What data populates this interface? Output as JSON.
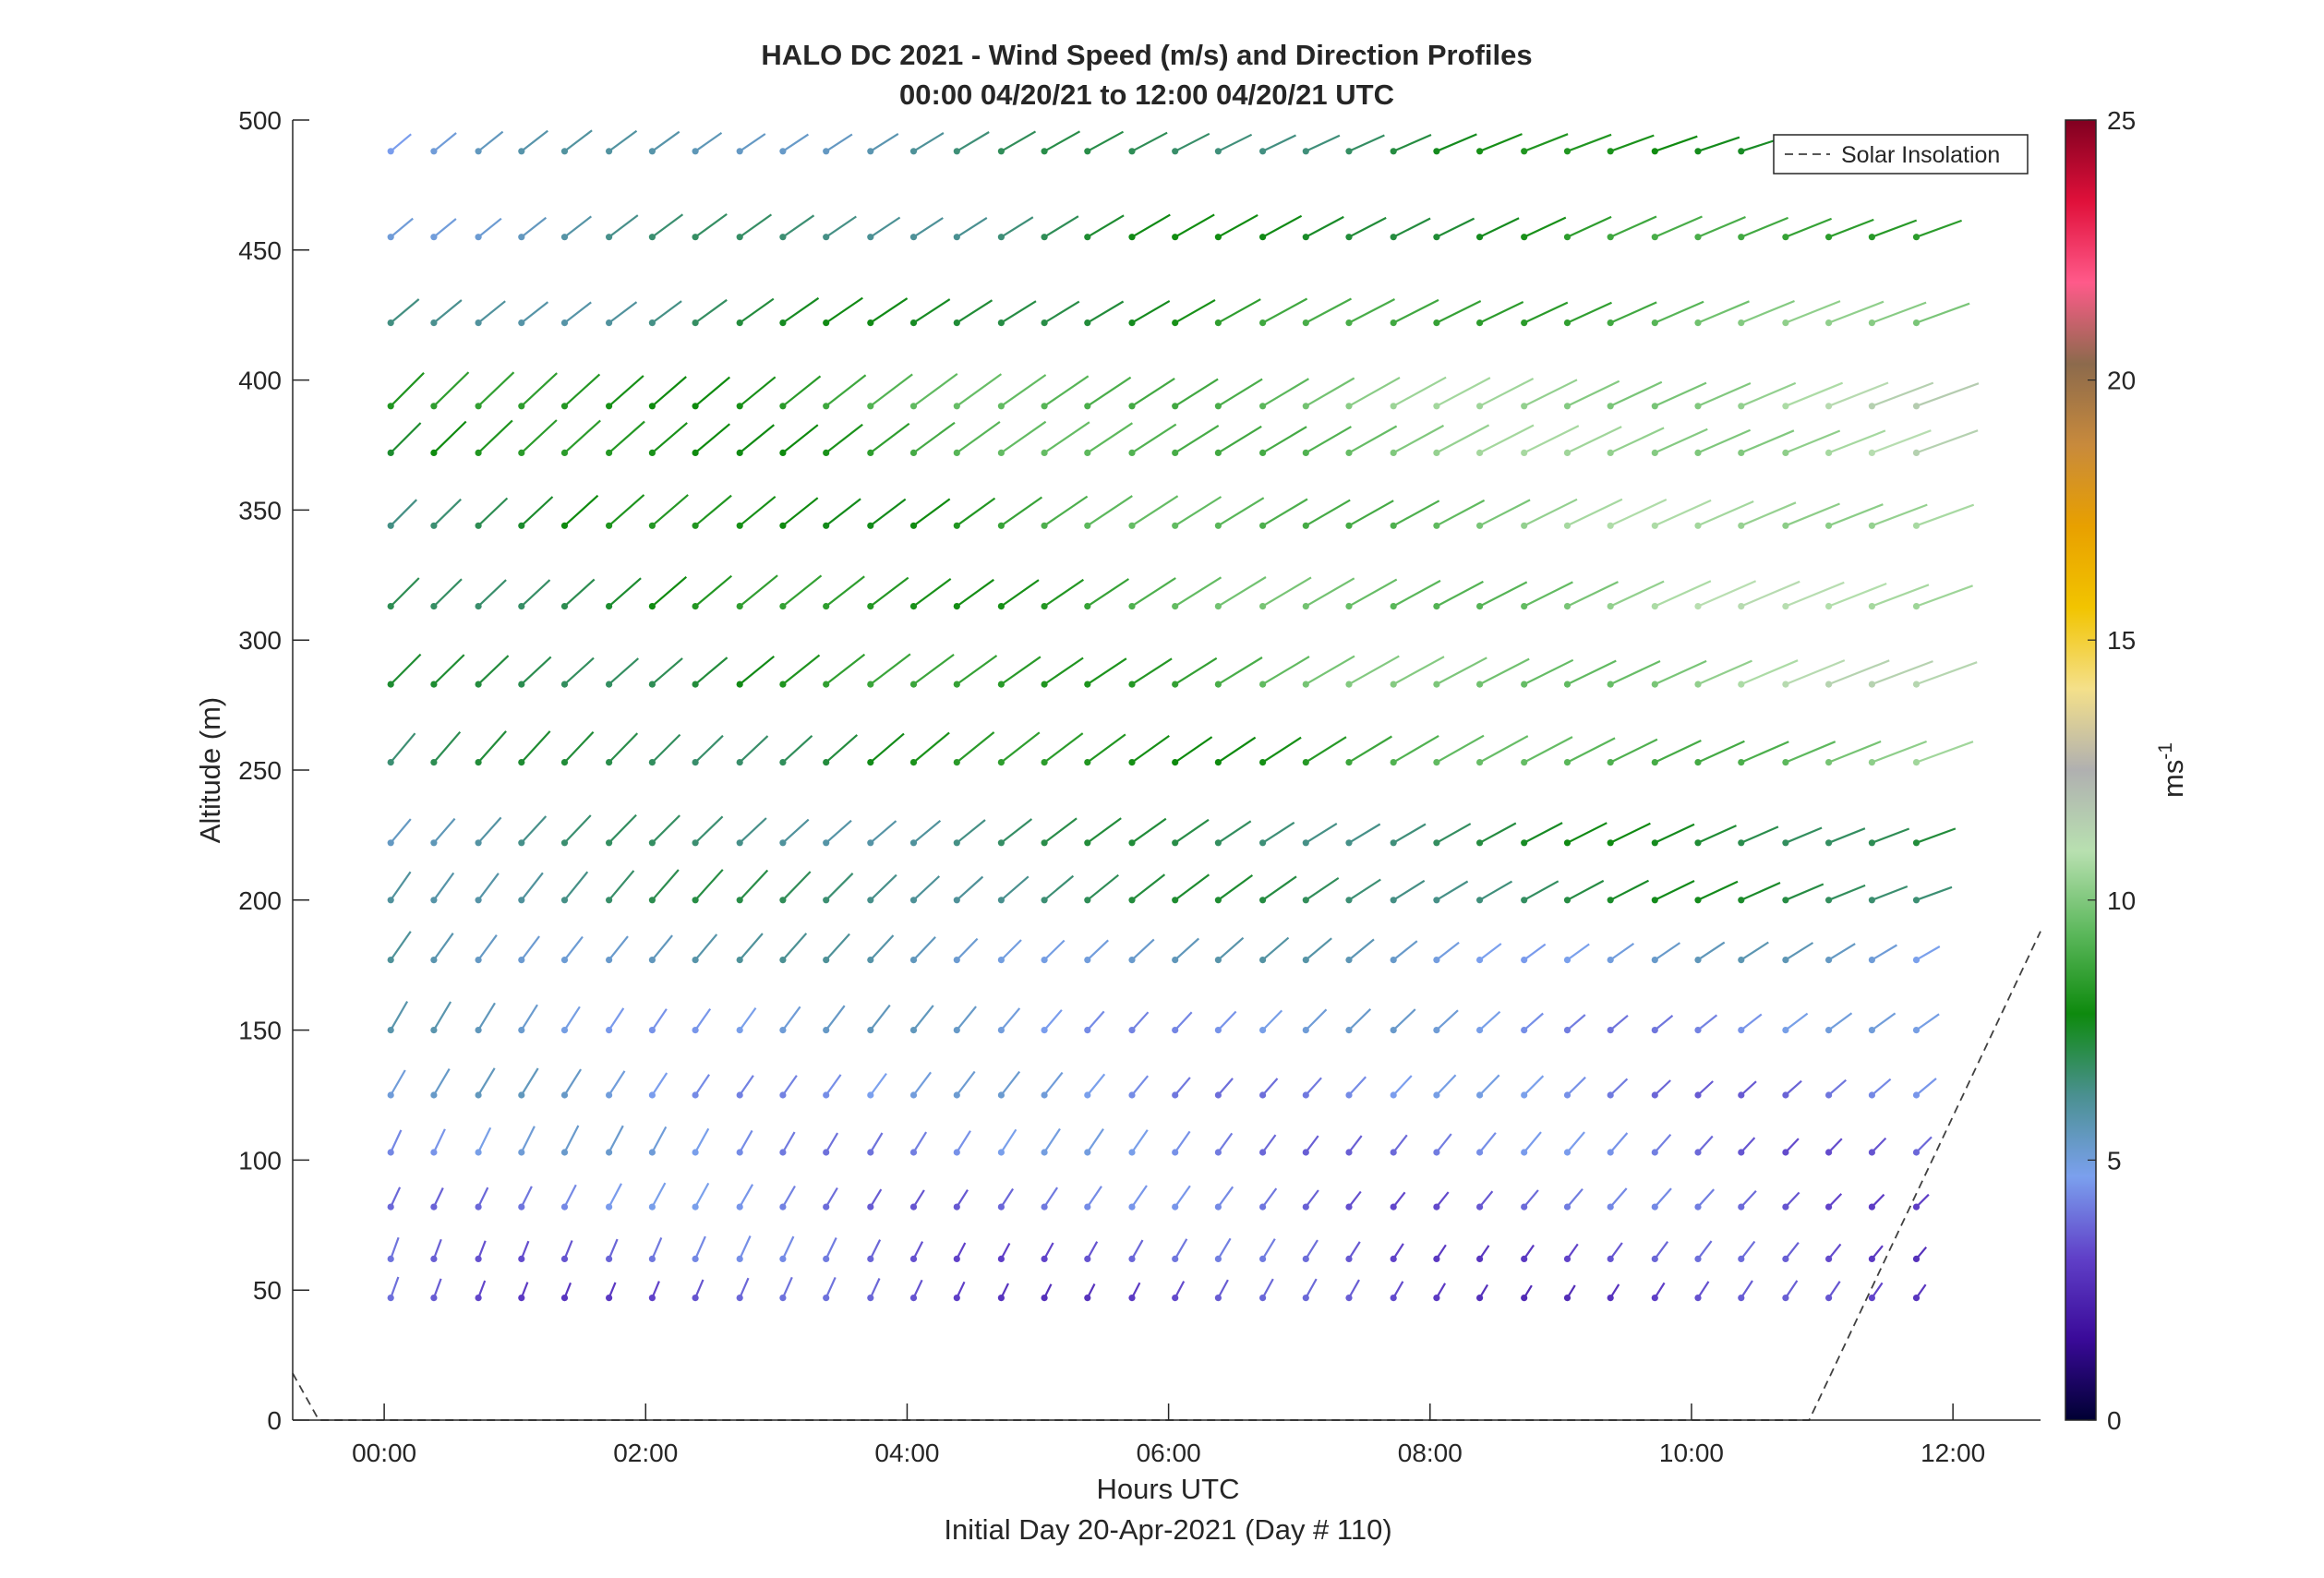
{
  "chart_data": {
    "type": "scatter",
    "title": "HALO DC 2021 - Wind Speed (m/s) and Direction Profiles",
    "subtitle": "00:00 04/20/21 to 12:00 04/20/21  UTC",
    "xlabel": "Hours UTC",
    "xlabel2": "Initial Day 20-Apr-2021 (Day # 110)",
    "ylabel": "Altitude (m)",
    "x_unit": "hours UTC",
    "xlim": [
      -0.7,
      12.67
    ],
    "ylim": [
      0,
      500
    ],
    "x_ticks": [
      0,
      2,
      4,
      6,
      8,
      10,
      12
    ],
    "x_tick_labels": [
      "00:00",
      "02:00",
      "04:00",
      "06:00",
      "08:00",
      "10:00",
      "12:00"
    ],
    "y_ticks": [
      0,
      50,
      100,
      150,
      200,
      250,
      300,
      350,
      400,
      450,
      500
    ],
    "y_tick_labels": [
      "0",
      "50",
      "100",
      "150",
      "200",
      "250",
      "300",
      "350",
      "400",
      "450",
      "500"
    ],
    "colorbar": {
      "label": "ms",
      "label_superscript": "-1",
      "range": [
        0,
        25
      ],
      "ticks": [
        0,
        5,
        10,
        15,
        20,
        25
      ],
      "tick_labels": [
        "0",
        "5",
        "10",
        "15",
        "20",
        "25"
      ]
    },
    "legend": {
      "entries": [
        "Solar Insolation"
      ],
      "placement": "top-right"
    },
    "times": [
      0.05,
      0.38,
      0.72,
      1.05,
      1.38,
      1.72,
      2.05,
      2.38,
      2.72,
      3.05,
      3.38,
      3.72,
      4.05,
      4.38,
      4.72,
      5.05,
      5.38,
      5.72,
      6.05,
      6.38,
      6.72,
      7.05,
      7.38,
      7.72,
      8.05,
      8.38,
      8.72,
      9.05,
      9.38,
      9.72,
      10.05,
      10.38,
      10.72,
      11.05,
      11.38,
      11.72
    ],
    "altitudes": [
      47,
      62,
      82,
      103,
      125,
      150,
      177,
      200,
      222,
      253,
      283,
      313,
      344,
      372,
      390,
      422,
      455,
      488
    ],
    "wind_speed_profile": [
      {
        "altitude": 47,
        "speed_start": 3.5,
        "speed_end": 3.0,
        "dir_start": 200,
        "dir_end": 215
      },
      {
        "altitude": 62,
        "speed_start": 4.0,
        "speed_end": 3.2,
        "dir_start": 200,
        "dir_end": 220
      },
      {
        "altitude": 82,
        "speed_start": 4.3,
        "speed_end": 3.6,
        "dir_start": 205,
        "dir_end": 225
      },
      {
        "altitude": 103,
        "speed_start": 4.8,
        "speed_end": 3.8,
        "dir_start": 205,
        "dir_end": 225
      },
      {
        "altitude": 125,
        "speed_start": 5.0,
        "speed_end": 4.0,
        "dir_start": 210,
        "dir_end": 230
      },
      {
        "altitude": 150,
        "speed_start": 5.2,
        "speed_end": 4.4,
        "dir_start": 210,
        "dir_end": 235
      },
      {
        "altitude": 177,
        "speed_start": 5.8,
        "speed_end": 5.0,
        "dir_start": 215,
        "dir_end": 240
      },
      {
        "altitude": 200,
        "speed_start": 6.4,
        "speed_end": 7.2,
        "dir_start": 215,
        "dir_end": 250
      },
      {
        "altitude": 222,
        "speed_start": 6.0,
        "speed_end": 7.5,
        "dir_start": 220,
        "dir_end": 250
      },
      {
        "altitude": 253,
        "speed_start": 6.5,
        "speed_end": 10.0,
        "dir_start": 220,
        "dir_end": 250
      },
      {
        "altitude": 283,
        "speed_start": 6.8,
        "speed_end": 11.0,
        "dir_start": 225,
        "dir_end": 250
      },
      {
        "altitude": 313,
        "speed_start": 7.0,
        "speed_end": 11.0,
        "dir_start": 225,
        "dir_end": 250
      },
      {
        "altitude": 344,
        "speed_start": 7.0,
        "speed_end": 11.0,
        "dir_start": 225,
        "dir_end": 250
      },
      {
        "altitude": 372,
        "speed_start": 7.5,
        "speed_end": 11.0,
        "dir_start": 225,
        "dir_end": 250
      },
      {
        "altitude": 390,
        "speed_start": 7.8,
        "speed_end": 11.0,
        "dir_start": 225,
        "dir_end": 250
      },
      {
        "altitude": 422,
        "speed_start": 6.0,
        "speed_end": 10.0,
        "dir_start": 230,
        "dir_end": 250
      },
      {
        "altitude": 455,
        "speed_start": 5.5,
        "speed_end": 9.0,
        "dir_start": 230,
        "dir_end": 250
      },
      {
        "altitude": 488,
        "speed_start": 5.0,
        "speed_end": 8.5,
        "dir_start": 230,
        "dir_end": 255
      }
    ],
    "solar_insolation": {
      "name": "Solar Insolation",
      "x": [
        -0.7,
        -0.5,
        10.9,
        12.67
      ],
      "y": [
        18,
        0,
        0,
        188
      ]
    }
  },
  "colors": {
    "axis": "#262626",
    "solar_line": "#404040",
    "colormap": [
      "#000033",
      "#3a0a99",
      "#6040c8",
      "#7ba0ee",
      "#4a9090",
      "#0e8a0e",
      "#5cb85c",
      "#b8e0b0",
      "#b0b0b0",
      "#f4e08a",
      "#f2c400",
      "#e8a000",
      "#c88a3c",
      "#8c6a4c",
      "#ff5a8a",
      "#e0103a",
      "#800020"
    ]
  }
}
